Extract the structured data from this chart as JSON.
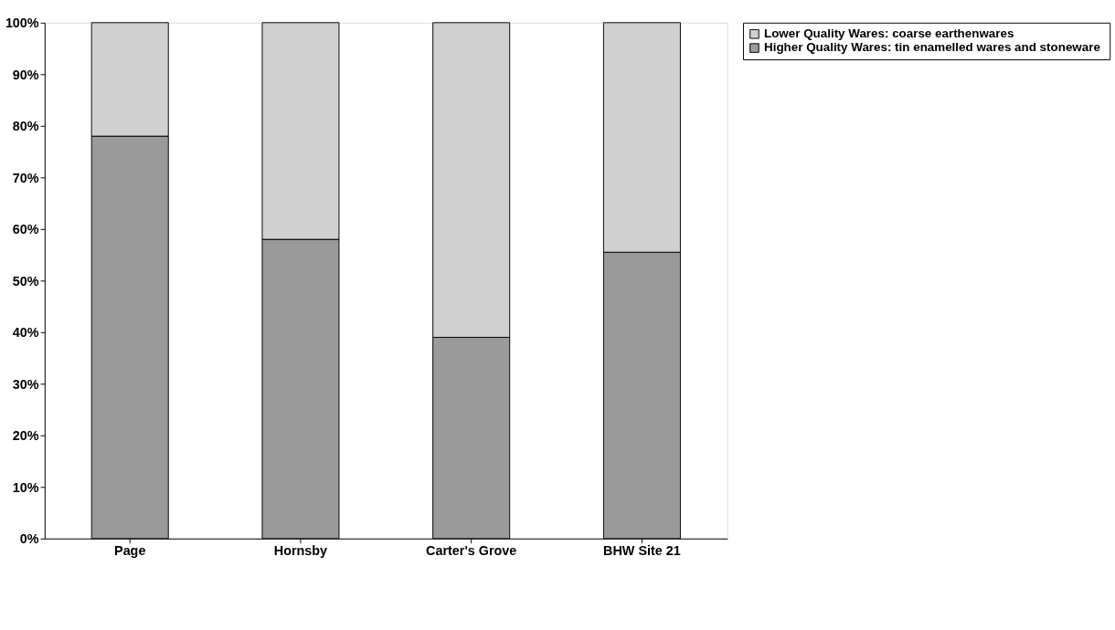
{
  "chart_data": {
    "type": "bar",
    "stacked": true,
    "categories": [
      "Page",
      "Hornsby",
      "Carter's Grove",
      "BHW Site 21"
    ],
    "series": [
      {
        "name": "Higher Quality Wares:  tin enamelled wares and stoneware",
        "color": "#9a9a9a",
        "values": [
          78,
          58,
          39,
          55.5
        ]
      },
      {
        "name": "Lower Quality Wares:  coarse earthenwares",
        "color": "#d0d0d0",
        "values": [
          22,
          42,
          61,
          44.5
        ]
      }
    ],
    "ylim": [
      0,
      100
    ],
    "yticks": [
      {
        "value": 0,
        "label": "0%"
      },
      {
        "value": 10,
        "label": "10%"
      },
      {
        "value": 20,
        "label": "20%"
      },
      {
        "value": 30,
        "label": "30%"
      },
      {
        "value": 40,
        "label": "40%"
      },
      {
        "value": 50,
        "label": "50%"
      },
      {
        "value": 60,
        "label": "60%"
      },
      {
        "value": 70,
        "label": "70%"
      },
      {
        "value": 80,
        "label": "80%"
      },
      {
        "value": 90,
        "label": "90%"
      },
      {
        "value": 100,
        "label": "100%"
      }
    ],
    "grid": false,
    "legend": "right"
  }
}
